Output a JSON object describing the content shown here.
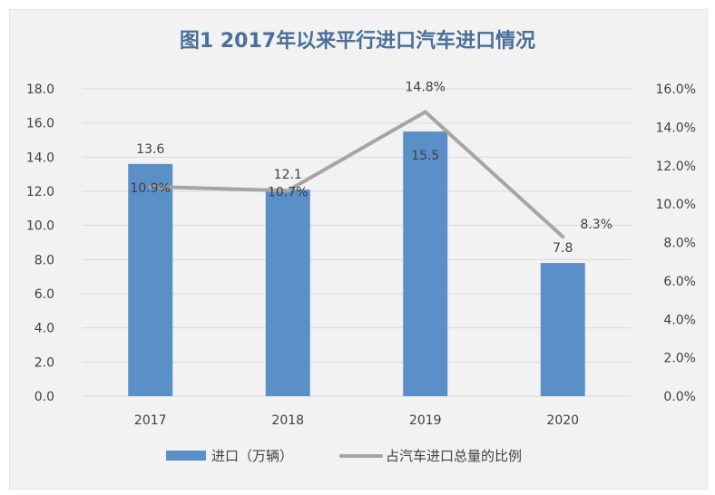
{
  "chart_data": {
    "title": "图1 2017年以来平行进口汽车进口情况",
    "type": "bar",
    "categories": [
      "2017",
      "2018",
      "2019",
      "2020"
    ],
    "series": [
      {
        "name": "进口（万辆）",
        "type": "bar",
        "axis": "left",
        "values": [
          13.6,
          12.1,
          15.5,
          7.8
        ],
        "labels": [
          "13.6",
          "12.1",
          "15.5",
          "7.8"
        ],
        "color": "#5b8fc7"
      },
      {
        "name": "占汽车进口总量的比例",
        "type": "line",
        "axis": "right",
        "values": [
          10.9,
          10.7,
          14.8,
          8.3
        ],
        "labels": [
          "10.9%",
          "10.7%",
          "14.8%",
          "8.3%"
        ],
        "color": "#a5a5a5"
      }
    ],
    "y_left": {
      "min": 0,
      "max": 18,
      "step": 2,
      "ticks": [
        "0.0",
        "2.0",
        "4.0",
        "6.0",
        "8.0",
        "10.0",
        "12.0",
        "14.0",
        "16.0",
        "18.0"
      ]
    },
    "y_right": {
      "min": 0,
      "max": 16,
      "step": 2,
      "ticks": [
        "0.0%",
        "2.0%",
        "4.0%",
        "6.0%",
        "8.0%",
        "10.0%",
        "12.0%",
        "14.0%",
        "16.0%"
      ]
    },
    "grid": true,
    "legend_position": "bottom"
  }
}
